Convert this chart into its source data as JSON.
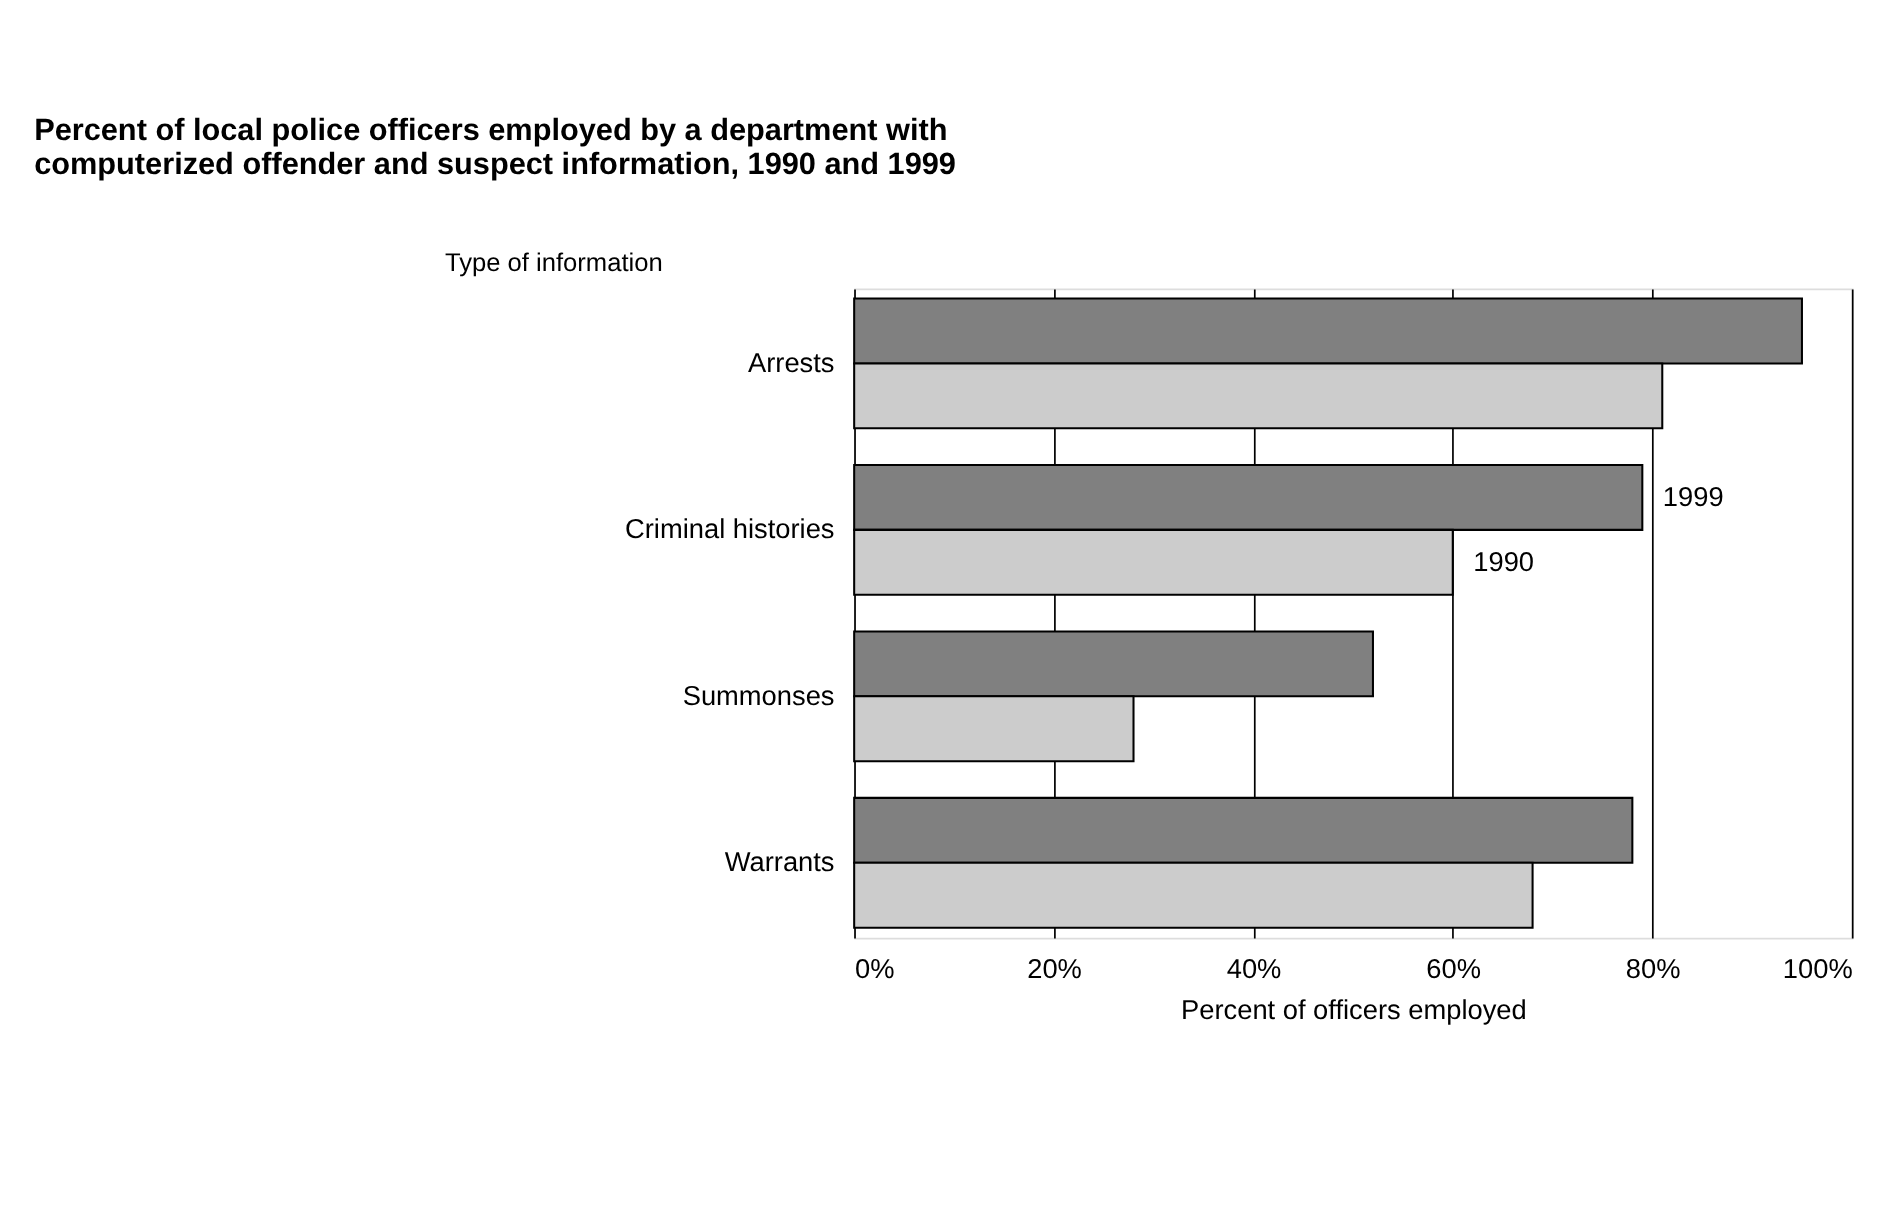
{
  "chart_data": {
    "type": "bar",
    "orientation": "horizontal",
    "title": "Percent of local police officers employed by a department with\ncomputerized offender and suspect information, 1990 and 1999",
    "ylabel": "Type of information",
    "xlabel": "Percent of officers employed",
    "categories": [
      "Arrests",
      "Criminal histories",
      "Summonses",
      "Warrants"
    ],
    "series": [
      {
        "name": "1999",
        "color": "#808080",
        "values": [
          95,
          79,
          52,
          78
        ]
      },
      {
        "name": "1990",
        "color": "#cccccc",
        "values": [
          81,
          60,
          28,
          68
        ]
      }
    ],
    "xlim": [
      0,
      100
    ],
    "xticks": [
      {
        "value": 0,
        "label": "0%"
      },
      {
        "value": 20,
        "label": "20%"
      },
      {
        "value": 40,
        "label": "40%"
      },
      {
        "value": 60,
        "label": "60%"
      },
      {
        "value": 80,
        "label": "80%"
      },
      {
        "value": 100,
        "label": "100%"
      }
    ],
    "grid": "x",
    "legend": false
  }
}
